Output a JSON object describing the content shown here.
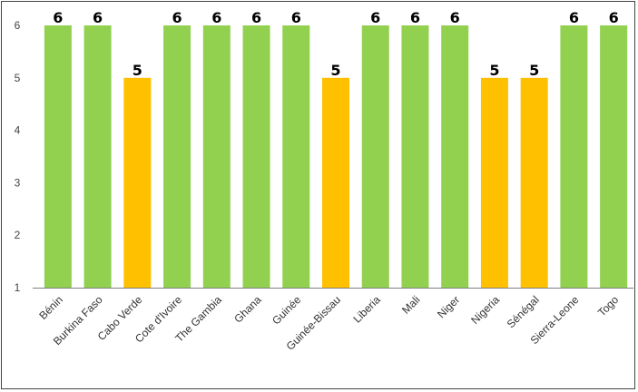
{
  "chart_data": {
    "type": "bar",
    "title": "",
    "xlabel": "",
    "ylabel": "",
    "ylim": [
      1,
      6
    ],
    "yticks": [
      1,
      2,
      3,
      4,
      5,
      6
    ],
    "grid": false,
    "legend": "none",
    "colors": {
      "score_6": "#92D050",
      "score_5": "#FFC000",
      "axis": "#7f7f7f"
    },
    "categories": [
      "Bénin",
      "Burkina Faso",
      "Cabo Verde",
      "Cote d'Ivoire",
      "The Gambia",
      "Ghana",
      "Guinée",
      "Guinée-Bissau",
      "Liberia",
      "Mali",
      "Niger",
      "Nigeria",
      "Sénégal",
      "Sierra-Leone",
      "Togo"
    ],
    "values": [
      6,
      6,
      5,
      6,
      6,
      6,
      6,
      5,
      6,
      6,
      6,
      5,
      5,
      6,
      6
    ],
    "data_labels": [
      "6",
      "6",
      "5",
      "6",
      "6",
      "6",
      "6",
      "5",
      "6",
      "6",
      "6",
      "5",
      "5",
      "6",
      "6"
    ]
  }
}
